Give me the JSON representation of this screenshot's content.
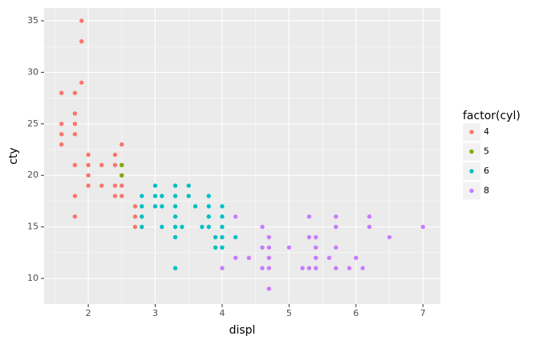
{
  "chart_data": {
    "type": "scatter",
    "x_label": "displ",
    "y_label": "cty",
    "legend_title": "factor(cyl)",
    "xlim": [
      1.34,
      7.26
    ],
    "ylim": [
      7.52,
      36.24
    ],
    "xticks": [
      2,
      3,
      4,
      5,
      6,
      7
    ],
    "yticks": [
      10,
      15,
      20,
      25,
      30,
      35
    ],
    "grid": true,
    "legend": "right",
    "series": [
      {
        "name": "4",
        "color": "#F8766D",
        "x": [
          1.6,
          1.6,
          1.6,
          1.6,
          1.8,
          1.8,
          1.8,
          1.8,
          1.8,
          1.8,
          1.8,
          1.9,
          1.9,
          1.9,
          2.0,
          2.0,
          2.0,
          2.0,
          2.2,
          2.2,
          2.4,
          2.4,
          2.4,
          2.4,
          2.5,
          2.5,
          2.5,
          2.5,
          2.5,
          2.7,
          2.7,
          2.7
        ],
        "values": [
          28,
          25,
          24,
          23,
          28,
          26,
          25,
          24,
          21,
          18,
          16,
          35,
          33,
          29,
          22,
          21,
          20,
          19,
          21,
          19,
          22,
          21,
          19,
          18,
          23,
          21,
          20,
          19,
          18,
          17,
          16,
          15
        ]
      },
      {
        "name": "5",
        "color": "#7CAE00",
        "x": [
          2.5,
          2.5
        ],
        "values": [
          21,
          20
        ]
      },
      {
        "name": "6",
        "color": "#00BFC4",
        "x": [
          2.8,
          2.8,
          2.8,
          2.8,
          3.0,
          3.0,
          3.0,
          3.1,
          3.1,
          3.1,
          3.3,
          3.3,
          3.3,
          3.3,
          3.3,
          3.3,
          3.3,
          3.4,
          3.5,
          3.5,
          3.6,
          3.7,
          3.8,
          3.8,
          3.8,
          3.8,
          3.9,
          3.9,
          4.0,
          4.0,
          4.0,
          4.0,
          4.0,
          4.2
        ],
        "values": [
          18,
          17,
          16,
          15,
          19,
          18,
          17,
          18,
          17,
          15,
          19,
          18,
          17,
          16,
          15,
          14,
          11,
          15,
          19,
          18,
          17,
          15,
          18,
          17,
          16,
          15,
          14,
          13,
          17,
          16,
          15,
          14,
          13,
          14
        ]
      },
      {
        "name": "8",
        "color": "#C77CFF",
        "x": [
          4.0,
          4.2,
          4.2,
          4.4,
          4.6,
          4.6,
          4.6,
          4.7,
          4.7,
          4.7,
          4.7,
          4.7,
          5.0,
          5.2,
          5.3,
          5.3,
          5.3,
          5.4,
          5.4,
          5.4,
          5.4,
          5.6,
          5.7,
          5.7,
          5.7,
          5.7,
          5.9,
          6.0,
          6.1,
          6.2,
          6.2,
          6.5,
          7.0
        ],
        "values": [
          11,
          16,
          12,
          12,
          15,
          13,
          11,
          14,
          13,
          12,
          11,
          9,
          13,
          11,
          16,
          14,
          11,
          14,
          13,
          12,
          11,
          12,
          16,
          15,
          13,
          11,
          11,
          12,
          11,
          16,
          15,
          14,
          15
        ]
      }
    ]
  }
}
